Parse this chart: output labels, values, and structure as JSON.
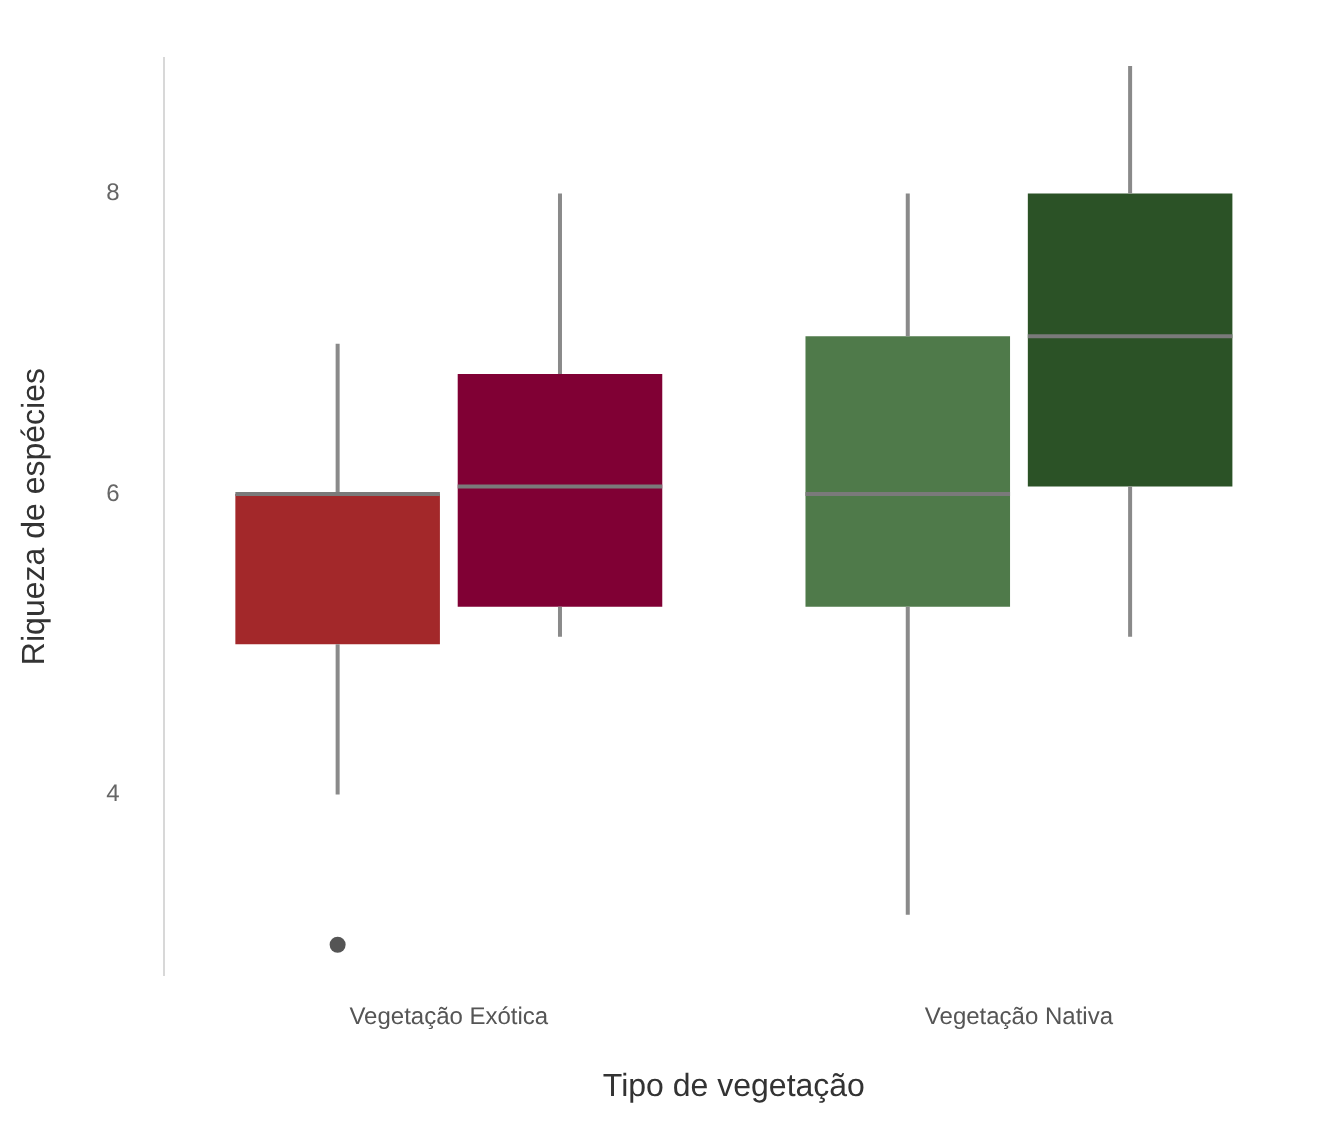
{
  "chart_data": {
    "type": "box",
    "xlabel": "Tipo de vegetação",
    "ylabel": "Riqueza de espécies",
    "categories": [
      "Vegetação Exótica",
      "Vegetação Nativa"
    ],
    "ylim": [
      2.8,
      8.9
    ],
    "yticks": [
      4,
      6,
      8
    ],
    "grid": false,
    "series": [
      {
        "colors": [
          "#a3282a",
          "#4f7a4a"
        ],
        "boxes": [
          {
            "low": 4,
            "q1": 5,
            "median": 6,
            "q3": 6,
            "high": 7,
            "outliers": [
              3
            ]
          },
          {
            "low": 3.2,
            "q1": 5.25,
            "median": 6,
            "q3": 7.05,
            "high": 8
          }
        ]
      },
      {
        "colors": [
          "#800034",
          "#2b5226"
        ],
        "boxes": [
          {
            "low": 5.05,
            "q1": 5.25,
            "median": 6.05,
            "q3": 6.8,
            "high": 8
          },
          {
            "low": 5.05,
            "q1": 6.05,
            "median": 7.05,
            "q3": 8,
            "high": 8.85
          }
        ]
      }
    ]
  }
}
